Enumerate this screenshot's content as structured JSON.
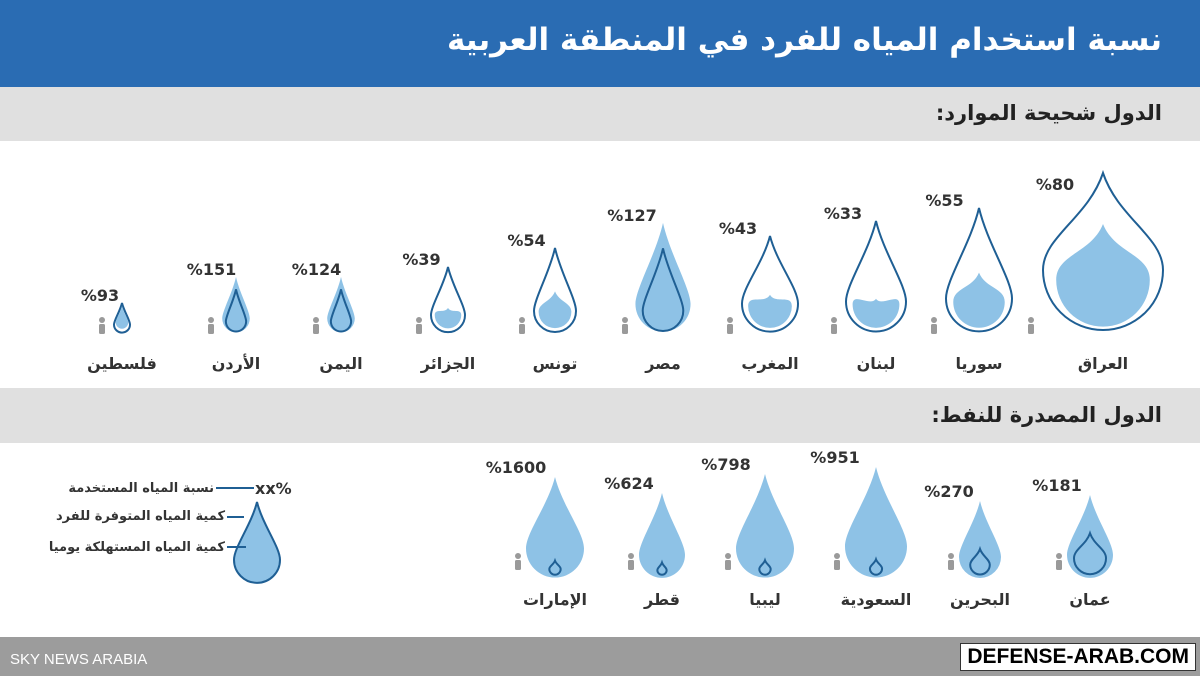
{
  "title": "نسبة استخدام المياه للفرد في المنطقة العربية",
  "watermark_left": "SKY NEWS ARABIA",
  "watermark_right": "DEFENSE-ARAB.COM",
  "colors": {
    "header": "#2a6cb3",
    "drop_fill": "#8ec2e6",
    "drop_stroke": "#1f5f94",
    "person": "#9a9a9a"
  },
  "legend": {
    "marker": "xx%",
    "items": [
      "نسبة المياه المستخدمة",
      "كمية المياه المتوفرة للفرد",
      "كمية المياه المستهلكة يوميا"
    ]
  },
  "chart_data": [
    {
      "type": "bar",
      "title": "الدول شحيحة الموارد:",
      "categories": [
        "العراق",
        "سوريا",
        "لبنان",
        "المغرب",
        "مصر",
        "تونس",
        "الجزائر",
        "اليمن",
        "الأردن",
        "فلسطين"
      ],
      "values": [
        80,
        55,
        33,
        43,
        127,
        54,
        39,
        124,
        151,
        93
      ],
      "labels": [
        "%80",
        "%55",
        "%33",
        "%43",
        "%127",
        "%54",
        "%39",
        "%124",
        "%151",
        "%93"
      ]
    },
    {
      "type": "bar",
      "title": "الدول المصدرة للنفط:",
      "categories": [
        "عمان",
        "البحرين",
        "السعودية",
        "ليبيا",
        "قطر",
        "الإمارات"
      ],
      "values": [
        181,
        270,
        951,
        798,
        624,
        1600
      ],
      "labels": [
        "%181",
        "%270",
        "%951",
        "%798",
        "%624",
        "%1600"
      ]
    }
  ]
}
